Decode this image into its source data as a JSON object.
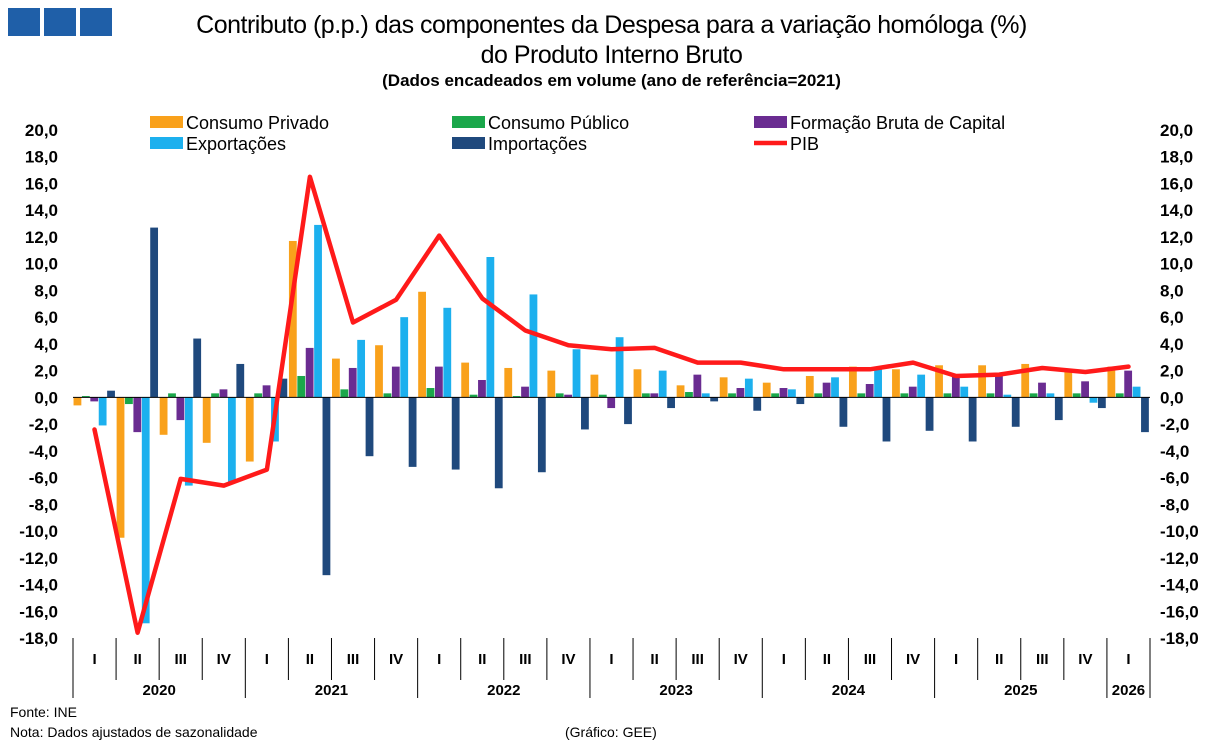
{
  "header": {
    "title_line1": "Contributo (p.p.) das componentes da Despesa para a variação homóloga (%)",
    "title_line2": "do Produto Interno Bruto",
    "subtitle": "(Dados encadeados em volume  (ano de referência=2021)"
  },
  "footer": {
    "source": "Fonte:  INE",
    "note": "Nota: Dados ajustados de sazonalidade",
    "credit": "(Gráfico: GEE)"
  },
  "chart_data": {
    "type": "bar",
    "title": "Contributo (p.p.) das componentes da Despesa para a variação homóloga (%) do Produto Interno Bruto",
    "ylim": [
      -18,
      20
    ],
    "y_ticks": [
      "20,0",
      "18,0",
      "16,0",
      "14,0",
      "12,0",
      "10,0",
      "8,0",
      "6,0",
      "4,0",
      "2,0",
      "0,0",
      "-2,0",
      "-4,0",
      "-6,0",
      "-8,0",
      "-10,0",
      "-12,0",
      "-14,0",
      "-16,0",
      "-18,0"
    ],
    "categories": [
      "I",
      "II",
      "III",
      "IV",
      "I",
      "II",
      "III",
      "IV",
      "I",
      "II",
      "III",
      "IV",
      "I",
      "II",
      "III",
      "IV",
      "I",
      "II",
      "III",
      "IV",
      "I",
      "II",
      "III",
      "IV",
      "I"
    ],
    "years": [
      {
        "label": "2020",
        "count": 4
      },
      {
        "label": "2021",
        "count": 4
      },
      {
        "label": "2022",
        "count": 4
      },
      {
        "label": "2023",
        "count": 4
      },
      {
        "label": "2024",
        "count": 4
      },
      {
        "label": "2025",
        "count": 4
      },
      {
        "label": "2026",
        "count": 1
      }
    ],
    "legend": "top",
    "series": [
      {
        "name": "Consumo Privado",
        "color": "#f9a11b",
        "kind": "bar",
        "values": [
          -0.6,
          -10.5,
          -2.8,
          -3.4,
          -4.8,
          11.7,
          2.9,
          3.9,
          7.9,
          2.6,
          2.2,
          2.0,
          1.7,
          2.1,
          0.9,
          1.5,
          1.1,
          1.6,
          2.3,
          2.1,
          2.4,
          2.4,
          2.5,
          2.0,
          2.3
        ]
      },
      {
        "name": "Consumo Público",
        "color": "#1aa74a",
        "kind": "bar",
        "values": [
          0.1,
          -0.5,
          0.3,
          0.3,
          0.3,
          1.6,
          0.6,
          0.3,
          0.7,
          0.2,
          0.1,
          0.3,
          0.2,
          0.3,
          0.4,
          0.3,
          0.3,
          0.3,
          0.3,
          0.3,
          0.3,
          0.3,
          0.3,
          0.3,
          0.3
        ]
      },
      {
        "name": "Formação Bruta de Capital",
        "color": "#6a2c91",
        "kind": "bar",
        "values": [
          -0.3,
          -2.6,
          -1.7,
          0.6,
          0.9,
          3.7,
          2.2,
          2.3,
          2.3,
          1.3,
          0.8,
          0.2,
          -0.8,
          0.3,
          1.7,
          0.7,
          0.7,
          1.1,
          1.0,
          0.8,
          1.6,
          1.6,
          1.1,
          1.2,
          2.0
        ]
      },
      {
        "name": "Exportações",
        "color": "#1cb0ee",
        "kind": "bar",
        "values": [
          -2.1,
          -16.9,
          -6.6,
          -6.4,
          -3.3,
          12.9,
          4.3,
          6.0,
          6.7,
          10.5,
          7.7,
          3.6,
          4.5,
          2.0,
          0.3,
          1.4,
          0.6,
          1.5,
          2.3,
          1.7,
          0.8,
          0.2,
          0.3,
          -0.4,
          0.8
        ]
      },
      {
        "name": "Importações",
        "color": "#1f497d",
        "kind": "bar",
        "values": [
          0.5,
          12.7,
          4.4,
          2.5,
          1.4,
          -13.3,
          -4.4,
          -5.2,
          -5.4,
          -6.8,
          -5.6,
          -2.4,
          -2.0,
          -0.8,
          -0.3,
          -1.0,
          -0.5,
          -2.2,
          -3.3,
          -2.5,
          -3.3,
          -2.2,
          -1.7,
          -0.8,
          -2.6
        ]
      },
      {
        "name": "PIB",
        "color": "#ff1a1a",
        "kind": "line",
        "values": [
          -2.4,
          -17.6,
          -6.1,
          -6.6,
          -5.4,
          16.5,
          5.6,
          7.3,
          12.1,
          7.4,
          5.0,
          3.9,
          3.6,
          3.7,
          2.6,
          2.6,
          2.1,
          2.1,
          2.1,
          2.6,
          1.6,
          1.7,
          2.2,
          1.9,
          2.3
        ]
      }
    ]
  }
}
